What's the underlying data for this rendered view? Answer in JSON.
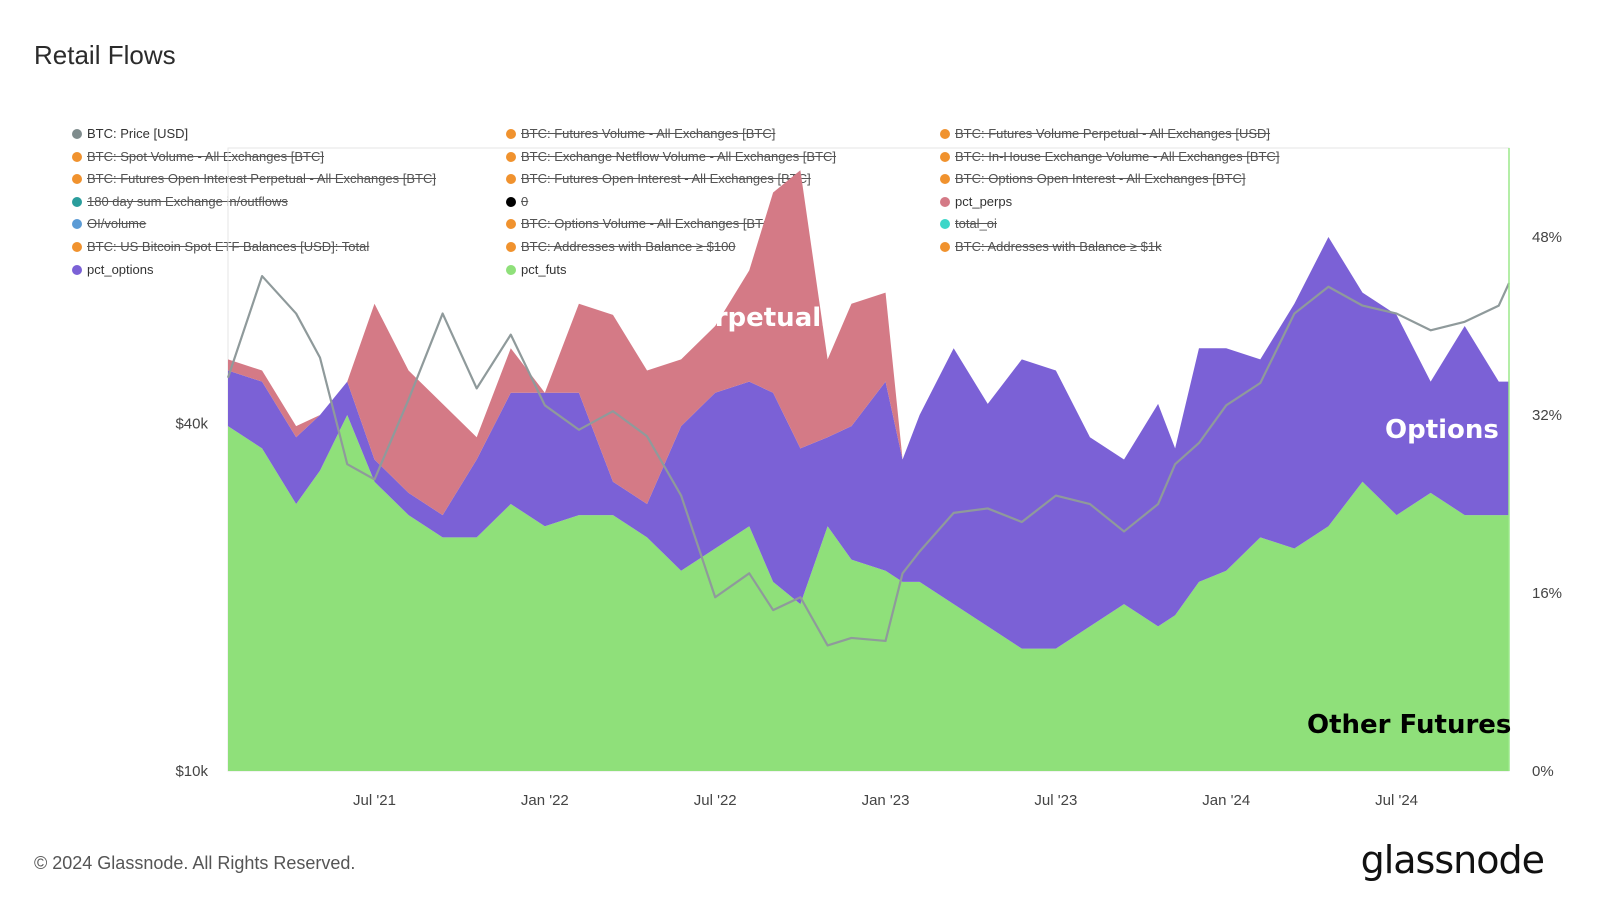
{
  "title": "Retail Flows",
  "footer": "© 2024 Glassnode. All Rights Reserved.",
  "brand": "glassnode",
  "legend": [
    {
      "label": "BTC: Price [USD]",
      "color": "#7f8c8d",
      "active": true
    },
    {
      "label": "BTC: Spot Volume - All Exchanges [BTC]",
      "color": "#f0922e",
      "active": false
    },
    {
      "label": "BTC: Futures Open Interest Perpetual - All Exchanges [BTC]",
      "color": "#f0922e",
      "active": false
    },
    {
      "label": "180 day sum Exchange in/outflows",
      "color": "#2a9d9c",
      "active": false
    },
    {
      "label": "OI/volume",
      "color": "#5b9bd5",
      "active": false
    },
    {
      "label": "BTC: US Bitcoin Spot ETF Balances [USD]: Total",
      "color": "#f0922e",
      "active": false
    },
    {
      "label": "pct_options",
      "color": "#7b61d6",
      "active": true
    },
    {
      "label": "BTC: Futures Volume - All Exchanges [BTC]",
      "color": "#f0922e",
      "active": false
    },
    {
      "label": "BTC: Exchange Netflow Volume - All Exchanges [BTC]",
      "color": "#f0922e",
      "active": false
    },
    {
      "label": "BTC: Futures Open Interest - All Exchanges [BTC]",
      "color": "#f0922e",
      "active": false
    },
    {
      "label": "0",
      "color": "#000000",
      "active": false
    },
    {
      "label": "BTC: Options Volume - All Exchanges [BTC]",
      "color": "#f0922e",
      "active": false
    },
    {
      "label": "BTC: Addresses with Balance ≥ $100",
      "color": "#f0922e",
      "active": false
    },
    {
      "label": "pct_futs",
      "color": "#8fe07a",
      "active": true
    },
    {
      "label": "BTC: Futures Volume Perpetual - All Exchanges [USD]",
      "color": "#f0922e",
      "active": false
    },
    {
      "label": "BTC: In-House Exchange Volume - All Exchanges [BTC]",
      "color": "#f0922e",
      "active": false
    },
    {
      "label": "BTC: Options Open Interest - All Exchanges [BTC]",
      "color": "#f0922e",
      "active": false
    },
    {
      "label": "pct_perps",
      "color": "#d47a86",
      "active": true
    },
    {
      "label": "total_oi",
      "color": "#3dd6c8",
      "active": false
    },
    {
      "label": "BTC: Addresses with Balance ≥ $1k",
      "color": "#f0922e",
      "active": false
    }
  ],
  "annotations": [
    {
      "text": "Perpetuals",
      "color": "#ffffff"
    },
    {
      "text": "Options",
      "color": "#ffffff"
    },
    {
      "text": "Other Futures",
      "color": "#000000"
    }
  ],
  "chart_data": {
    "type": "area",
    "subtype": "stacked percent with price overlay",
    "x_ticks": [
      "Jul '21",
      "Jan '22",
      "Jul '22",
      "Jan '23",
      "Jul '23",
      "Jan '24",
      "Jul '24"
    ],
    "x_tick_times": [
      2021.5,
      2022.0,
      2022.5,
      2023.0,
      2023.5,
      2024.0,
      2024.5
    ],
    "x_range": [
      2021.07,
      2024.83
    ],
    "left_axis": {
      "label": "",
      "scale": "log",
      "ticks": [
        "$10k",
        "$40k"
      ],
      "tick_values": [
        10000,
        40000
      ],
      "range": [
        10000,
        120000
      ]
    },
    "right_axis": {
      "label": "",
      "ticks": [
        "0%",
        "16%",
        "32%",
        "48%"
      ],
      "tick_values": [
        0,
        16,
        32,
        48
      ],
      "range": [
        0,
        56
      ]
    },
    "time": [
      2021.07,
      2021.17,
      2021.27,
      2021.34,
      2021.42,
      2021.5,
      2021.6,
      2021.7,
      2021.8,
      2021.9,
      2022.0,
      2022.1,
      2022.2,
      2022.3,
      2022.4,
      2022.5,
      2022.6,
      2022.67,
      2022.75,
      2022.83,
      2022.9,
      2023.0,
      2023.05,
      2023.1,
      2023.2,
      2023.3,
      2023.4,
      2023.5,
      2023.6,
      2023.7,
      2023.8,
      2023.85,
      2023.92,
      2024.0,
      2024.1,
      2024.2,
      2024.3,
      2024.4,
      2024.5,
      2024.6,
      2024.7,
      2024.8,
      2024.83
    ],
    "series": [
      {
        "name": "pct_futs",
        "color": "#8fe07a",
        "values": [
          31,
          29,
          24,
          27,
          32,
          26,
          23,
          21,
          21,
          24,
          22,
          23,
          23,
          21,
          18,
          20,
          22,
          17,
          15,
          22,
          19,
          18,
          17,
          17,
          15,
          13,
          11,
          11,
          13,
          15,
          13,
          14,
          17,
          18,
          21,
          20,
          22,
          26,
          23,
          25,
          23,
          23,
          23
        ]
      },
      {
        "name": "pct_options",
        "color": "#7b61d6",
        "values": [
          5,
          6,
          6,
          5,
          3,
          2,
          2,
          2,
          7,
          10,
          12,
          11,
          3,
          3,
          13,
          14,
          13,
          17,
          14,
          8,
          12,
          17,
          11,
          15,
          23,
          20,
          26,
          25,
          17,
          13,
          20,
          15,
          21,
          20,
          16,
          22,
          26,
          17,
          18,
          10,
          17,
          12,
          12
        ]
      },
      {
        "name": "pct_perps",
        "color": "#d47a86",
        "values": [
          1,
          1,
          1,
          0,
          0,
          14,
          11,
          10,
          2,
          4,
          0,
          8,
          15,
          12,
          6,
          6,
          10,
          18,
          25,
          7,
          11,
          8,
          0,
          0,
          0,
          0,
          0,
          0,
          0,
          0,
          0,
          0,
          0,
          0,
          0,
          0,
          0,
          0,
          0,
          0,
          0,
          0,
          0
        ]
      },
      {
        "name": "BTC: Price [USD]",
        "color": "#8f9a9b",
        "axis": "left",
        "values": [
          48000,
          72000,
          62000,
          52000,
          34000,
          32000,
          44000,
          62000,
          46000,
          57000,
          43000,
          39000,
          42000,
          38000,
          30000,
          20000,
          22000,
          19000,
          20000,
          16500,
          17000,
          16800,
          22000,
          24000,
          28000,
          28500,
          27000,
          30000,
          29000,
          26000,
          29000,
          34000,
          37000,
          43000,
          47000,
          62000,
          69000,
          64000,
          62000,
          58000,
          60000,
          64000,
          70000
        ]
      }
    ]
  }
}
